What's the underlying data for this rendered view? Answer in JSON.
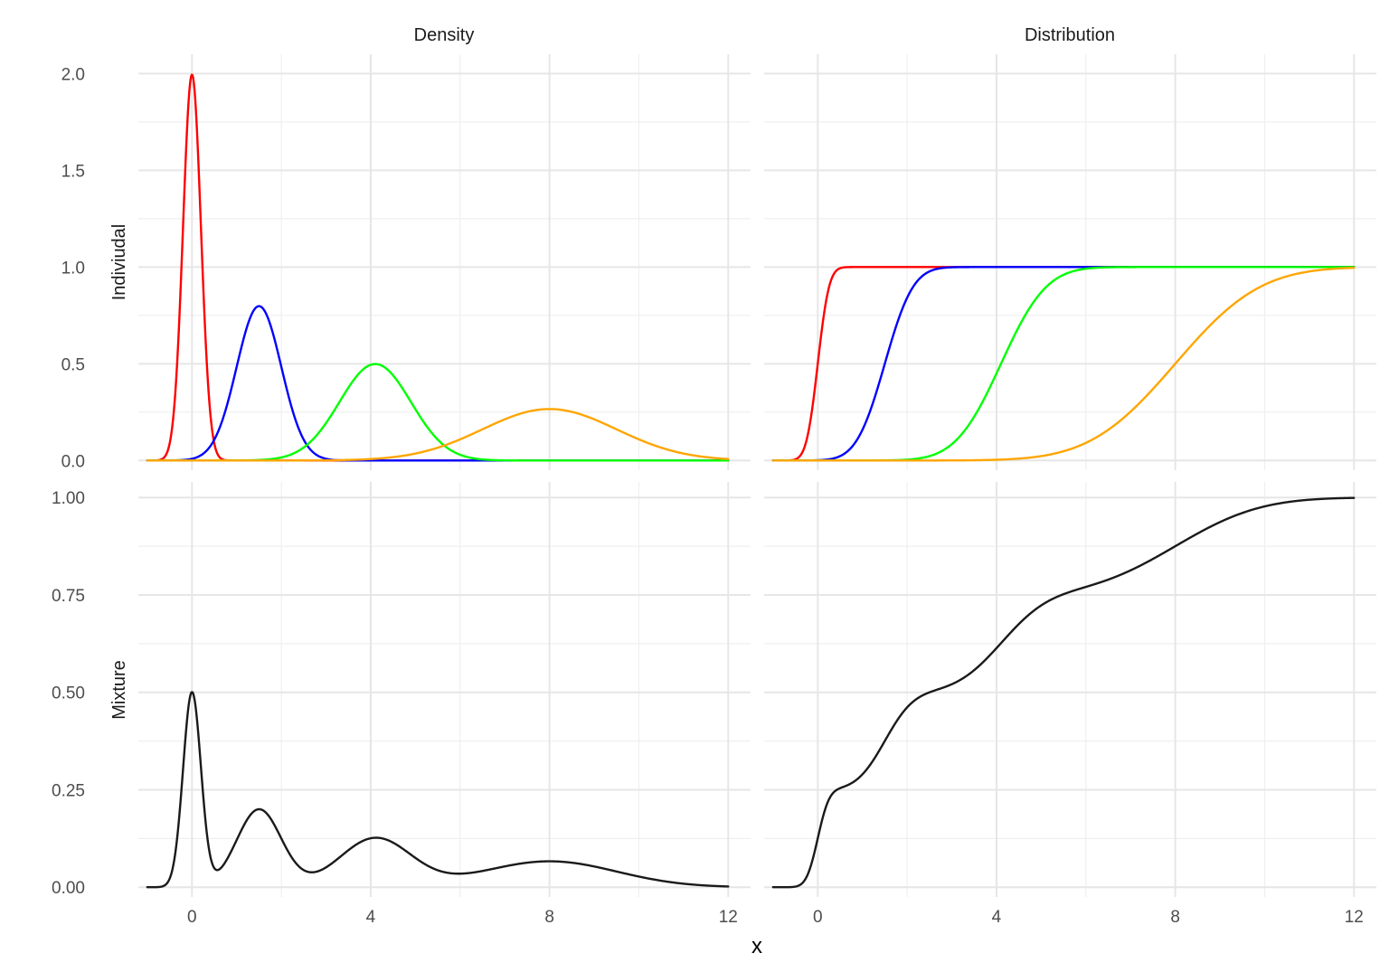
{
  "chart_data": {
    "type": "line",
    "layout": "2x2 facet grid, theme_minimal",
    "column_strips": [
      "Density",
      "Distribution"
    ],
    "row_strips": [
      "Indiviudal",
      "Mixture"
    ],
    "xlabel": "x",
    "xlim": [
      -1.2,
      12.5
    ],
    "x_ticks": [
      "0",
      "4",
      "8",
      "12"
    ],
    "x_tick_values": [
      0,
      4,
      8,
      12
    ],
    "legend": "none",
    "grid": true,
    "rows": [
      {
        "row": "Indiviudal",
        "ylim": [
          -0.05,
          2.1
        ],
        "y_ticks": [
          "0.0",
          "0.5",
          "1.0",
          "1.5",
          "2.0"
        ],
        "y_tick_values": [
          0,
          0.5,
          1.0,
          1.5,
          2.0
        ]
      },
      {
        "row": "Mixture",
        "ylim": [
          -0.025,
          1.04
        ],
        "y_ticks": [
          "0.00",
          "0.25",
          "0.50",
          "0.75",
          "1.00"
        ],
        "y_tick_values": [
          0,
          0.25,
          0.5,
          0.75,
          1.0
        ]
      }
    ],
    "x_range": [
      -1,
      12
    ],
    "components": [
      {
        "color": "#ff0000",
        "mean": 0,
        "sd": 0.2,
        "weight": 0.25
      },
      {
        "color": "#0000ff",
        "mean": 1.5,
        "sd": 0.5,
        "weight": 0.25
      },
      {
        "color": "#00ff00",
        "mean": 4.1,
        "sd": 0.8,
        "weight": 0.25
      },
      {
        "color": "#ffa500",
        "mean": 8,
        "sd": 1.5,
        "weight": 0.25
      }
    ],
    "mixture_color": "#1a1a1a",
    "panels": [
      {
        "row": "Indiviudal",
        "column": "Density",
        "series": "component densities"
      },
      {
        "row": "Indiviudal",
        "column": "Distribution",
        "series": "component CDFs"
      },
      {
        "row": "Mixture",
        "column": "Density",
        "series": "mixture density",
        "peak_approx": 0.5
      },
      {
        "row": "Mixture",
        "column": "Distribution",
        "series": "mixture CDF",
        "end_value": 1.0
      }
    ]
  }
}
